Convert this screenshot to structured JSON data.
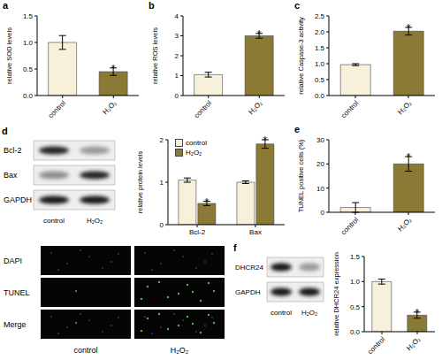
{
  "chart_data": [
    {
      "panel": "a",
      "type": "bar",
      "categories": [
        "control",
        "H₂O₂"
      ],
      "values": [
        1.0,
        0.45
      ],
      "errors": [
        0.13,
        0.07
      ],
      "annotations": [
        null,
        "*"
      ],
      "colors": [
        "#f7f0da",
        "#8a7a36"
      ],
      "ylabel": "relative SOD levels",
      "ylim": [
        0,
        1.5
      ],
      "yticks": [
        {
          "value": 0,
          "label": "0.0"
        },
        {
          "value": 0.5,
          "label": "0.5"
        },
        {
          "value": 1,
          "label": "1.0"
        },
        {
          "value": 1.5,
          "label": "1.5"
        }
      ],
      "grid": false
    },
    {
      "panel": "b",
      "type": "bar",
      "categories": [
        "control",
        "H₂O₂"
      ],
      "values": [
        1.05,
        3.0
      ],
      "errors": [
        0.12,
        0.12
      ],
      "annotations": [
        null,
        "*"
      ],
      "colors": [
        "#f7f0da",
        "#8a7a36"
      ],
      "ylabel": "relative ROS levels",
      "ylim": [
        0,
        4
      ],
      "yticks": [
        0,
        1,
        2,
        3,
        4
      ],
      "grid": false
    },
    {
      "panel": "c",
      "type": "bar",
      "categories": [
        "control",
        "H₂O₂"
      ],
      "values": [
        0.97,
        2.02
      ],
      "errors": [
        0.03,
        0.12
      ],
      "annotations": [
        null,
        "*"
      ],
      "colors": [
        "#f7f0da",
        "#8a7a36"
      ],
      "ylabel": "relative Caspase-3 activity",
      "ylim": [
        0,
        2.5
      ],
      "yticks": [
        {
          "value": 0,
          "label": "0.0"
        },
        {
          "value": 0.5,
          "label": "0.5"
        },
        {
          "value": 1,
          "label": "1.0"
        },
        {
          "value": 1.5,
          "label": "1.5"
        },
        {
          "value": 2,
          "label": "2.0"
        },
        {
          "value": 2.5,
          "label": "2.5"
        }
      ],
      "grid": false
    },
    {
      "type": "bar",
      "categories": [
        "Bcl-2",
        "Bax"
      ],
      "series": [
        {
          "name": "control",
          "color": "#f7f0da",
          "values": [
            1.05,
            1.0
          ],
          "errors": [
            0.05,
            0.03
          ],
          "annotations": [
            null,
            null
          ]
        },
        {
          "name": "H₂O₂",
          "color": "#8a7a36",
          "values": [
            0.5,
            1.9
          ],
          "errors": [
            0.05,
            0.1
          ],
          "annotations": [
            "*",
            "*"
          ]
        }
      ],
      "ylabel": "relative protein levels",
      "ylim": [
        0,
        2
      ],
      "yticks": [
        0,
        1,
        2
      ],
      "legend": "upper left",
      "grid": false
    },
    {
      "panel": "e",
      "type": "bar",
      "categories": [
        "control",
        "H₂O₂"
      ],
      "values": [
        2,
        20
      ],
      "errors": [
        2,
        3
      ],
      "annotations": [
        null,
        "*"
      ],
      "colors": [
        "#f7f0da",
        "#8a7a36"
      ],
      "ylabel": "TUNEL positive cells (%)",
      "ylim": [
        0,
        30
      ],
      "yticks": [
        0,
        10,
        20,
        30
      ],
      "grid": false
    },
    {
      "type": "bar",
      "categories": [
        "control",
        "H₂O₂"
      ],
      "values": [
        1.0,
        0.33
      ],
      "errors": [
        0.05,
        0.06
      ],
      "annotations": [
        null,
        "*"
      ],
      "colors": [
        "#f7f0da",
        "#8a7a36"
      ],
      "ylabel": "relative DHCR24 expression",
      "ylim": [
        0,
        1.5
      ],
      "yticks": [
        {
          "value": 0,
          "label": "0.0"
        },
        {
          "value": 0.5,
          "label": "0.5"
        },
        {
          "value": 1,
          "label": "1.0"
        },
        {
          "value": 1.5,
          "label": "1.5"
        }
      ],
      "grid": false
    }
  ],
  "blots": [
    {
      "panel": "d",
      "rows": [
        "Bcl-2",
        "Bax",
        "GAPDH"
      ],
      "lanes": [
        "control",
        "H₂O₂"
      ]
    },
    {
      "panel": "f",
      "rows": [
        "DHCR24",
        "GAPDH"
      ],
      "lanes": [
        "control",
        "H₂O₂"
      ]
    }
  ],
  "tunel": {
    "rows": [
      "DAPI",
      "TUNEL",
      "Merge"
    ],
    "columns": [
      "control",
      "H₂O₂"
    ]
  }
}
